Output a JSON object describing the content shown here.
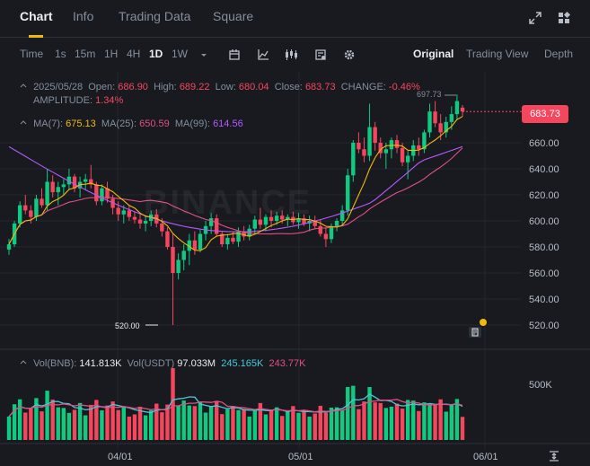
{
  "tabs": [
    {
      "label": "Chart"
    },
    {
      "label": "Info"
    },
    {
      "label": "Trading Data"
    },
    {
      "label": "Square"
    }
  ],
  "active_tab": "Chart",
  "header_icons": [
    "fullscreen-icon",
    "layout-grid-icon"
  ],
  "toolbar": {
    "intervals": [
      "Time",
      "1s",
      "15m",
      "1H",
      "4H",
      "1D",
      "1W"
    ],
    "selected_interval": "1D",
    "tool_icons": [
      "chevron-down-icon",
      "calendar-icon",
      "indicator-icon",
      "candle-type-icon",
      "template-icon",
      "settings-icon"
    ],
    "views": [
      "Original",
      "Trading View",
      "Depth"
    ],
    "selected_view": "Original"
  },
  "ohlc": {
    "date": "2025/05/28",
    "open_label": "Open:",
    "open": "686.90",
    "high_label": "High:",
    "high": "689.22",
    "low_label": "Low:",
    "low": "680.04",
    "close_label": "Close:",
    "close": "683.73",
    "change_label": "CHANGE:",
    "change": "-0.46%",
    "amplitude_label": "AMPLITUDE:",
    "amplitude": "1.34%"
  },
  "ma": {
    "ma7_label": "MA(7):",
    "ma7": "675.13",
    "ma25_label": "MA(25):",
    "ma25": "650.59",
    "ma99_label": "MA(99):",
    "ma99": "614.56"
  },
  "volume": {
    "vol_bnb_label": "Vol(BNB):",
    "vol_bnb": "141.813K",
    "vol_usdt_label": "Vol(USDT)",
    "vol_usdt": "97.033M",
    "ma5": "245.165K",
    "ma10": "243.77K",
    "axis_label": "500K"
  },
  "price_axis": [
    "660.00",
    "640.00",
    "620.00",
    "600.00",
    "580.00",
    "560.00",
    "540.00",
    "520.00"
  ],
  "current_price": "683.73",
  "date_axis": [
    "04/01",
    "05/01",
    "06/01"
  ],
  "min_marker": "520.00",
  "max_marker": "697.73",
  "watermark": "BINANCE",
  "colors": {
    "up": "#0ecb81",
    "down": "#f6465d",
    "ma7": "#f0b90b",
    "ma25": "#e15083",
    "ma99": "#b659ff",
    "accent": "#f0b90b"
  },
  "chart_data": {
    "type": "candlestick",
    "xlabel": "",
    "ylabel": "",
    "ylim": [
      514,
      700
    ],
    "candles": [
      [
        578,
        586,
        574,
        582
      ],
      [
        582,
        600,
        580,
        598
      ],
      [
        598,
        615,
        595,
        612
      ],
      [
        612,
        620,
        605,
        608
      ],
      [
        608,
        612,
        598,
        603
      ],
      [
        603,
        620,
        600,
        617
      ],
      [
        617,
        625,
        610,
        612
      ],
      [
        612,
        640,
        608,
        630
      ],
      [
        630,
        635,
        618,
        622
      ],
      [
        622,
        630,
        612,
        626
      ],
      [
        626,
        632,
        620,
        628
      ],
      [
        628,
        640,
        624,
        634
      ],
      [
        634,
        636,
        622,
        625
      ],
      [
        625,
        634,
        618,
        630
      ],
      [
        630,
        636,
        624,
        632
      ],
      [
        632,
        643,
        625,
        628
      ],
      [
        628,
        630,
        612,
        615
      ],
      [
        615,
        628,
        612,
        625
      ],
      [
        625,
        630,
        614,
        617
      ],
      [
        617,
        620,
        605,
        610
      ],
      [
        610,
        615,
        600,
        605
      ],
      [
        605,
        612,
        598,
        608
      ],
      [
        608,
        612,
        600,
        603
      ],
      [
        603,
        607,
        598,
        601
      ],
      [
        601,
        606,
        594,
        598
      ],
      [
        598,
        604,
        592,
        600
      ],
      [
        600,
        608,
        596,
        605
      ],
      [
        605,
        609,
        595,
        598
      ],
      [
        598,
        602,
        588,
        592
      ],
      [
        592,
        595,
        578,
        580
      ],
      [
        580,
        590,
        520,
        560
      ],
      [
        560,
        575,
        555,
        570
      ],
      [
        570,
        582,
        562,
        577
      ],
      [
        577,
        590,
        566,
        585
      ],
      [
        585,
        592,
        574,
        578
      ],
      [
        578,
        593,
        576,
        590
      ],
      [
        590,
        600,
        585,
        596
      ],
      [
        596,
        606,
        590,
        602
      ],
      [
        602,
        605,
        588,
        590
      ],
      [
        590,
        592,
        580,
        582
      ],
      [
        582,
        590,
        578,
        587
      ],
      [
        587,
        592,
        582,
        584
      ],
      [
        584,
        595,
        580,
        592
      ],
      [
        592,
        596,
        585,
        588
      ],
      [
        588,
        597,
        585,
        594
      ],
      [
        594,
        604,
        590,
        601
      ],
      [
        601,
        610,
        594,
        597
      ],
      [
        597,
        605,
        592,
        603
      ],
      [
        603,
        608,
        595,
        600
      ],
      [
        600,
        607,
        597,
        604
      ],
      [
        604,
        608,
        598,
        601
      ],
      [
        601,
        605,
        596,
        603
      ],
      [
        603,
        607,
        597,
        599
      ],
      [
        599,
        606,
        594,
        602
      ],
      [
        602,
        605,
        596,
        598
      ],
      [
        598,
        604,
        592,
        600
      ],
      [
        600,
        604,
        594,
        596
      ],
      [
        596,
        601,
        588,
        590
      ],
      [
        590,
        595,
        580,
        586
      ],
      [
        586,
        598,
        583,
        596
      ],
      [
        596,
        602,
        592,
        600
      ],
      [
        600,
        612,
        596,
        608
      ],
      [
        608,
        640,
        604,
        635
      ],
      [
        635,
        662,
        630,
        660
      ],
      [
        660,
        668,
        652,
        655
      ],
      [
        655,
        664,
        645,
        650
      ],
      [
        650,
        690,
        646,
        672
      ],
      [
        672,
        676,
        654,
        660
      ],
      [
        660,
        664,
        648,
        652
      ],
      [
        652,
        660,
        640,
        655
      ],
      [
        655,
        664,
        648,
        662
      ],
      [
        662,
        666,
        652,
        656
      ],
      [
        656,
        660,
        642,
        645
      ],
      [
        645,
        654,
        632,
        650
      ],
      [
        650,
        662,
        646,
        658
      ],
      [
        658,
        664,
        650,
        655
      ],
      [
        655,
        670,
        652,
        668
      ],
      [
        668,
        690,
        664,
        684
      ],
      [
        684,
        692,
        672,
        675
      ],
      [
        675,
        682,
        662,
        668
      ],
      [
        668,
        680,
        664,
        676
      ],
      [
        676,
        688,
        670,
        682
      ],
      [
        682,
        697,
        678,
        692
      ],
      [
        687,
        689,
        680,
        684
      ]
    ],
    "volume_scale_max": 700000
  }
}
